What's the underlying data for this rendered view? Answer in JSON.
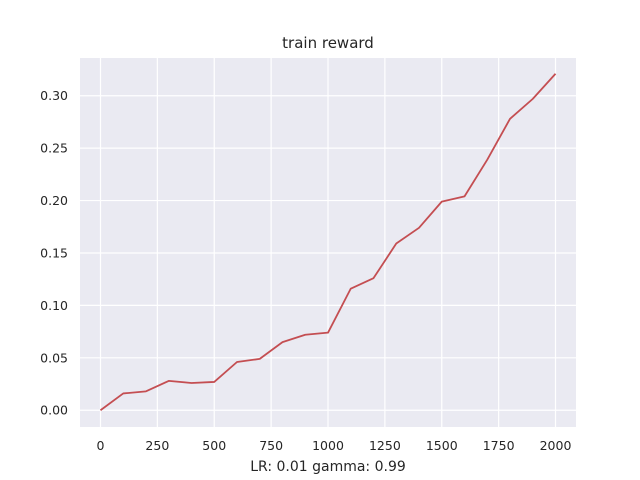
{
  "chart_data": {
    "type": "line",
    "title": "train reward",
    "xlabel": "LR: 0.01 gamma: 0.99",
    "ylabel": "",
    "xlim": [
      -90,
      2090
    ],
    "ylim": [
      -0.016,
      0.336
    ],
    "xticks": [
      0,
      250,
      500,
      750,
      1000,
      1250,
      1500,
      1750,
      2000
    ],
    "xtick_labels": [
      "0",
      "250",
      "500",
      "750",
      "1000",
      "1250",
      "1500",
      "1750",
      "2000"
    ],
    "yticks": [
      0.0,
      0.05,
      0.1,
      0.15,
      0.2,
      0.25,
      0.3
    ],
    "ytick_labels": [
      "0.00",
      "0.05",
      "0.10",
      "0.15",
      "0.20",
      "0.25",
      "0.30"
    ],
    "grid": true,
    "legend": "none",
    "background_color": "#eaeaf2",
    "grid_color": "#ffffff",
    "series": [
      {
        "color": "#c44e52",
        "x": [
          0,
          100,
          200,
          300,
          400,
          500,
          600,
          700,
          800,
          900,
          1000,
          1100,
          1200,
          1300,
          1400,
          1500,
          1600,
          1700,
          1800,
          1900,
          2000
        ],
        "y": [
          0.0,
          0.016,
          0.018,
          0.028,
          0.026,
          0.027,
          0.046,
          0.049,
          0.065,
          0.072,
          0.074,
          0.116,
          0.126,
          0.159,
          0.174,
          0.199,
          0.204,
          0.239,
          0.278,
          0.297,
          0.321
        ]
      }
    ]
  }
}
